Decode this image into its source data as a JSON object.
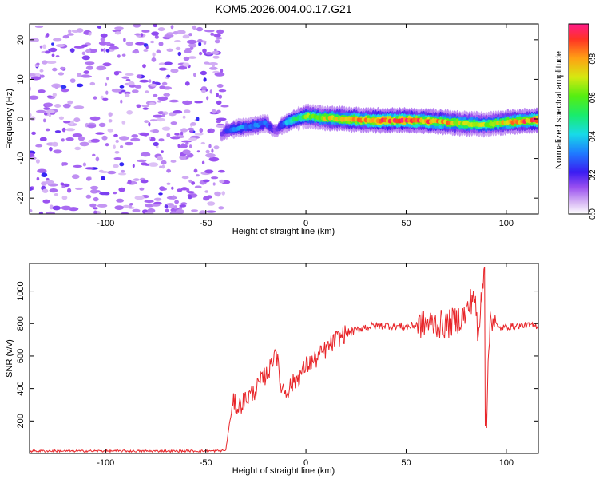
{
  "figure": {
    "title": "KOM5.2026.004.00.17.G21"
  },
  "chart_data": [
    {
      "type": "heatmap",
      "name": "spectrogram",
      "xlabel": "Height of straight line (km)",
      "ylabel": "Frequency (Hz)",
      "xlim": [
        -138,
        116
      ],
      "ylim": [
        -24,
        24
      ],
      "xticks": [
        -100,
        -50,
        0,
        50,
        100
      ],
      "yticks": [
        -20,
        -10,
        0,
        10,
        20
      ],
      "colorbar": {
        "label": "Normalized spectral amplitude",
        "range": [
          0.0,
          0.98
        ],
        "ticks": [
          "0.0",
          "0.2",
          "0.4",
          "0.6",
          "0.8"
        ],
        "tick_values": [
          0.0,
          0.2,
          0.4,
          0.6,
          0.8
        ]
      },
      "signal_trace": {
        "x": [
          -42,
          -40,
          -36,
          -32,
          -28,
          -24,
          -20,
          -17,
          -15,
          -12,
          -8,
          -4,
          0,
          5,
          10,
          20,
          30,
          40,
          50,
          60,
          70,
          80,
          90,
          100,
          110,
          116
        ],
        "frequency": [
          -4,
          -3,
          -2.5,
          -2.2,
          -2.0,
          -1.5,
          -1.0,
          -2.5,
          -3.0,
          -1.5,
          -0.5,
          0.2,
          0.7,
          0.5,
          0.2,
          0.0,
          -0.3,
          -0.4,
          -0.3,
          -0.5,
          -0.8,
          -1.2,
          -1.4,
          -0.8,
          -0.5,
          -0.3
        ],
        "amplitude": [
          0.15,
          0.25,
          0.3,
          0.35,
          0.3,
          0.35,
          0.3,
          0.2,
          0.15,
          0.3,
          0.45,
          0.5,
          0.6,
          0.65,
          0.7,
          0.8,
          0.85,
          0.9,
          0.9,
          0.85,
          0.8,
          0.7,
          0.65,
          0.75,
          0.85,
          0.9
        ]
      },
      "noise_region": {
        "x_range": [
          -138,
          -45
        ],
        "f_range": [
          -24,
          24
        ],
        "amplitude_range": [
          0.05,
          0.25
        ]
      }
    },
    {
      "type": "line",
      "name": "snr",
      "xlabel": "Height of straight line (km)",
      "ylabel": "SNR (v/v)",
      "xlim": [
        -138,
        116
      ],
      "ylim": [
        0,
        1170
      ],
      "xticks": [
        -100,
        -50,
        0,
        50,
        100
      ],
      "yticks": [
        200,
        400,
        600,
        800,
        1000
      ],
      "color": "#e8262a",
      "series": [
        {
          "name": "SNR",
          "x": [
            -138,
            -120,
            -100,
            -80,
            -60,
            -45,
            -40,
            -38,
            -36,
            -34,
            -30,
            -26,
            -22,
            -18,
            -15,
            -13,
            -10,
            -6,
            -2,
            0,
            5,
            10,
            15,
            20,
            25,
            30,
            40,
            50,
            60,
            65,
            70,
            75,
            80,
            84,
            86,
            88,
            89,
            90,
            92,
            96,
            100,
            110,
            116
          ],
          "y": [
            15,
            15,
            15,
            15,
            15,
            15,
            20,
            200,
            320,
            280,
            340,
            380,
            450,
            520,
            660,
            430,
            380,
            440,
            500,
            540,
            580,
            640,
            700,
            740,
            760,
            780,
            790,
            780,
            800,
            800,
            790,
            820,
            860,
            1000,
            680,
            1050,
            1150,
            170,
            860,
            770,
            780,
            790,
            785
          ]
        }
      ],
      "features": {
        "spike_x": 89,
        "spike_high": 1150,
        "spike_low": 170,
        "onset_x": -37,
        "noise_floor": 15,
        "plateau": 790
      }
    }
  ]
}
